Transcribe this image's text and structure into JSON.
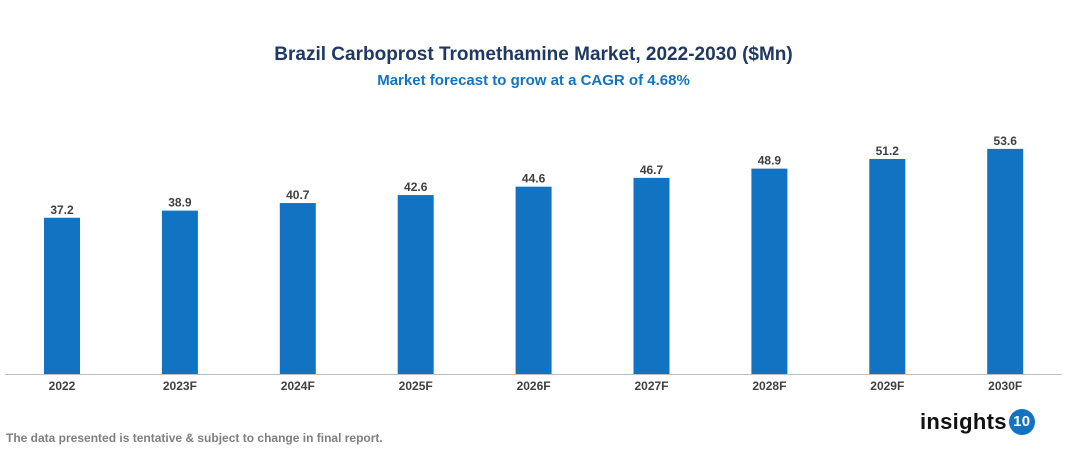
{
  "chart_data": {
    "type": "bar",
    "title": "Brazil Carboprost Tromethamine Market, 2022-2030 ($Mn)",
    "subtitle": "Market forecast to grow at a CAGR of 4.68%",
    "categories": [
      "2022",
      "2023F",
      "2024F",
      "2025F",
      "2026F",
      "2027F",
      "2028F",
      "2029F",
      "2030F"
    ],
    "values": [
      37.2,
      38.9,
      40.7,
      42.6,
      44.6,
      46.7,
      48.9,
      51.2,
      53.6
    ],
    "value_labels": [
      "37.2",
      "38.9",
      "40.7",
      "42.6",
      "44.6",
      "46.7",
      "48.9",
      "51.2",
      "53.6"
    ],
    "xlabel": "",
    "ylabel": "",
    "ylim": [
      0,
      65
    ],
    "grid": false,
    "legend": "none",
    "bar_color": "#1273c2"
  },
  "footer": {
    "note": "The data presented is tentative & subject to change in final report."
  },
  "logo": {
    "text": "insights",
    "number": "10"
  }
}
